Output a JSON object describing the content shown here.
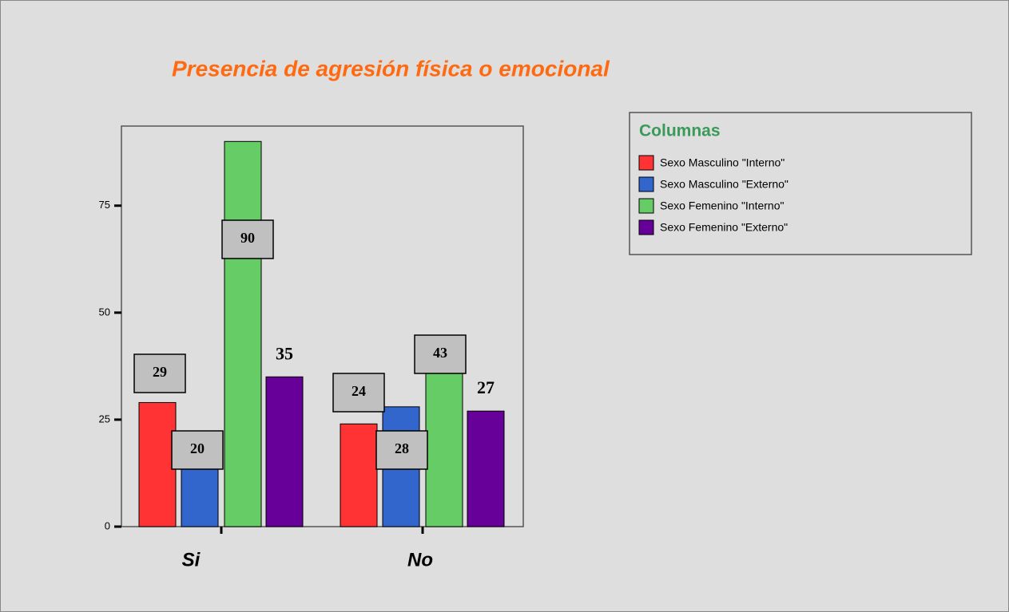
{
  "chart_data": {
    "type": "bar",
    "title": "Presencia de agresión física o emocional",
    "legend_title": "Columnas",
    "categories": [
      "Si",
      "No"
    ],
    "series": [
      {
        "name": "Sexo Masculino \"Interno\"",
        "color": "#ff3333",
        "values": [
          29,
          24
        ]
      },
      {
        "name": "Sexo Masculino \"Externo\"",
        "color": "#3366cc",
        "values": [
          20,
          28
        ]
      },
      {
        "name": "Sexo Femenino \"Interno\"",
        "color": "#66cc66",
        "values": [
          90,
          43
        ]
      },
      {
        "name": "Sexo Femenino \"Externo\"",
        "color": "#660099",
        "values": [
          35,
          27
        ]
      }
    ],
    "ylim": [
      0,
      93.6
    ],
    "yticks": [
      0,
      25,
      50,
      75
    ],
    "legend": "upper right"
  }
}
